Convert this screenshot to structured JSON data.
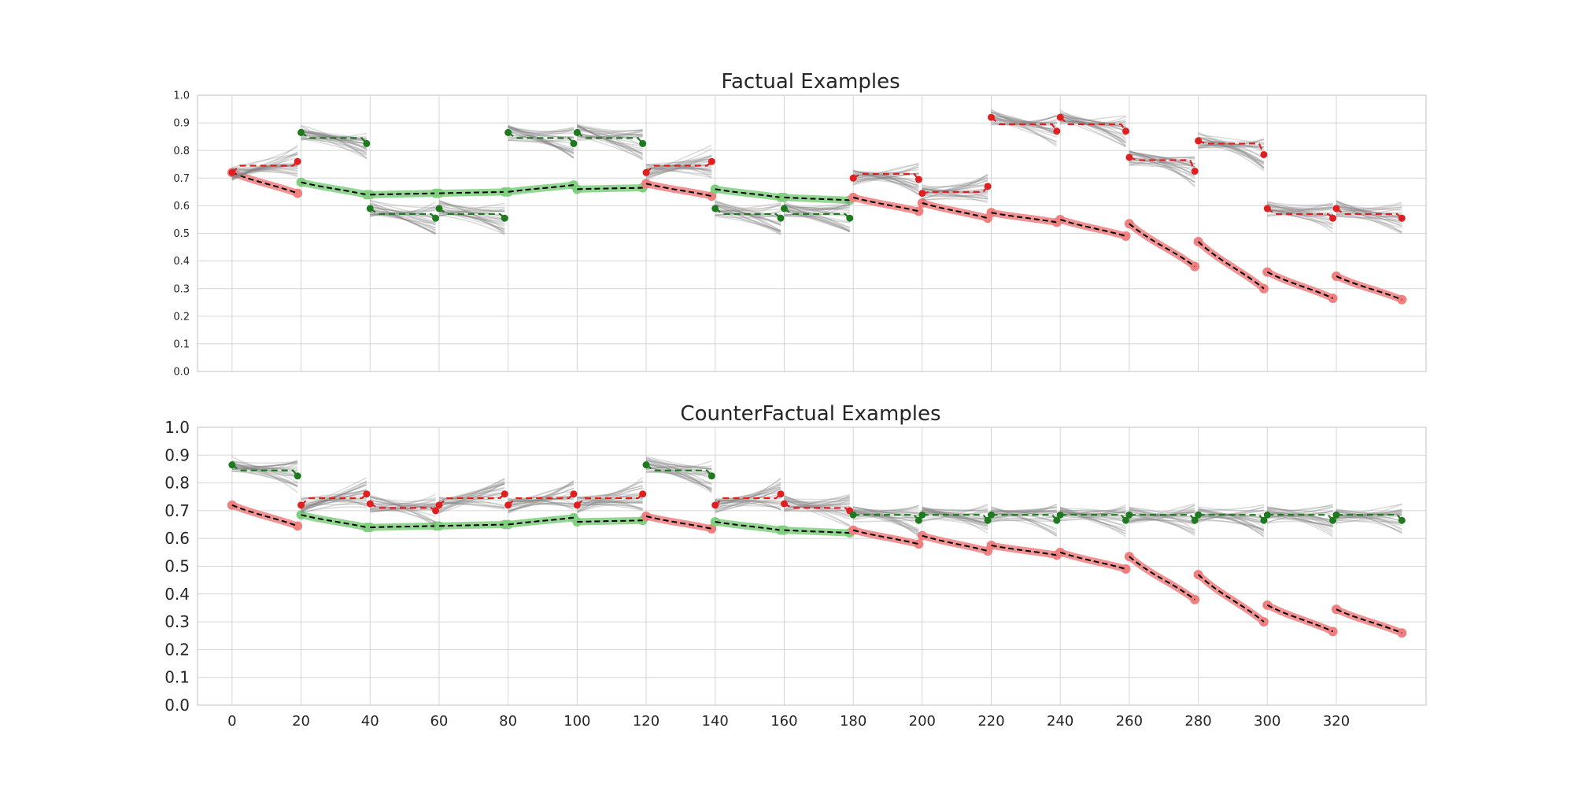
{
  "colors": {
    "background": "#ffffff",
    "frame": "#cccccc",
    "grid": "#d5d5d5",
    "green_dark": "#1f7a1f",
    "green_light": "#7fcf7f",
    "red": "#e02020",
    "red_light": "#f08080",
    "ensemble_gray": "#808080",
    "trend_black": "#000000"
  },
  "chart_data": [
    {
      "type": "line",
      "title": "Factual Examples",
      "xlim": [
        -10,
        346
      ],
      "ylim": [
        0.0,
        1.0
      ],
      "x_ticks": [],
      "y_ticks": [
        "0.0",
        "0.1",
        "0.2",
        "0.3",
        "0.4",
        "0.5",
        "0.6",
        "0.7",
        "0.8",
        "0.9",
        "1.0"
      ],
      "grid": true,
      "window_length": 20,
      "context": [
        {
          "color": "red",
          "values": [
            0.72,
            0.645
          ]
        },
        {
          "color": "green",
          "values": [
            0.685,
            0.64
          ]
        },
        {
          "color": "green",
          "values": [
            0.64,
            0.645
          ]
        },
        {
          "color": "green",
          "values": [
            0.645,
            0.65
          ]
        },
        {
          "color": "green",
          "values": [
            0.65,
            0.675
          ]
        },
        {
          "color": "green",
          "values": [
            0.66,
            0.665
          ]
        },
        {
          "color": "red",
          "values": [
            0.68,
            0.635
          ]
        },
        {
          "color": "green",
          "values": [
            0.66,
            0.63
          ]
        },
        {
          "color": "green",
          "values": [
            0.63,
            0.62
          ]
        },
        {
          "color": "red",
          "values": [
            0.63,
            0.58
          ]
        },
        {
          "color": "red",
          "values": [
            0.61,
            0.555
          ]
        },
        {
          "color": "red",
          "values": [
            0.575,
            0.54
          ]
        },
        {
          "color": "red",
          "values": [
            0.55,
            0.49
          ]
        },
        {
          "color": "red",
          "values": [
            0.535,
            0.38
          ]
        },
        {
          "color": "red",
          "values": [
            0.47,
            0.3
          ]
        },
        {
          "color": "red",
          "values": [
            0.36,
            0.265
          ]
        },
        {
          "color": "red",
          "values": [
            0.345,
            0.26
          ]
        }
      ],
      "forecasts": [
        {
          "color": "red",
          "start": 0.72,
          "level": 0.745,
          "end": 0.76
        },
        {
          "color": "green",
          "start": 0.865,
          "level": 0.845,
          "end": 0.825
        },
        {
          "color": "green",
          "start": 0.59,
          "level": 0.57,
          "end": 0.555
        },
        {
          "color": "green",
          "start": 0.59,
          "level": 0.57,
          "end": 0.555
        },
        {
          "color": "green",
          "start": 0.865,
          "level": 0.845,
          "end": 0.825
        },
        {
          "color": "green",
          "start": 0.865,
          "level": 0.845,
          "end": 0.825
        },
        {
          "color": "red",
          "start": 0.72,
          "level": 0.745,
          "end": 0.76
        },
        {
          "color": "green",
          "start": 0.59,
          "level": 0.57,
          "end": 0.555
        },
        {
          "color": "green",
          "start": 0.59,
          "level": 0.57,
          "end": 0.555
        },
        {
          "color": "red",
          "start": 0.7,
          "level": 0.715,
          "end": 0.695
        },
        {
          "color": "red",
          "start": 0.645,
          "level": 0.65,
          "end": 0.67
        },
        {
          "color": "red",
          "start": 0.92,
          "level": 0.895,
          "end": 0.87
        },
        {
          "color": "red",
          "start": 0.92,
          "level": 0.895,
          "end": 0.87
        },
        {
          "color": "red",
          "start": 0.775,
          "level": 0.765,
          "end": 0.725
        },
        {
          "color": "red",
          "start": 0.835,
          "level": 0.825,
          "end": 0.785
        },
        {
          "color": "red",
          "start": 0.59,
          "level": 0.57,
          "end": 0.555
        },
        {
          "color": "red",
          "start": 0.59,
          "level": 0.57,
          "end": 0.555
        }
      ]
    },
    {
      "type": "line",
      "title": "CounterFactual Examples",
      "xlim": [
        -10,
        346
      ],
      "ylim": [
        0.0,
        1.0
      ],
      "x_ticks": [
        "0",
        "20",
        "40",
        "60",
        "80",
        "100",
        "120",
        "140",
        "160",
        "180",
        "200",
        "220",
        "240",
        "260",
        "280",
        "300",
        "320"
      ],
      "y_ticks": [
        "0.0",
        "0.1",
        "0.2",
        "0.3",
        "0.4",
        "0.5",
        "0.6",
        "0.7",
        "0.8",
        "0.9",
        "1.0"
      ],
      "grid": true,
      "window_length": 20,
      "context": [
        {
          "color": "red",
          "values": [
            0.72,
            0.645
          ]
        },
        {
          "color": "green",
          "values": [
            0.685,
            0.64
          ]
        },
        {
          "color": "green",
          "values": [
            0.64,
            0.645
          ]
        },
        {
          "color": "green",
          "values": [
            0.645,
            0.65
          ]
        },
        {
          "color": "green",
          "values": [
            0.65,
            0.675
          ]
        },
        {
          "color": "green",
          "values": [
            0.66,
            0.665
          ]
        },
        {
          "color": "red",
          "values": [
            0.68,
            0.635
          ]
        },
        {
          "color": "green",
          "values": [
            0.66,
            0.63
          ]
        },
        {
          "color": "green",
          "values": [
            0.63,
            0.62
          ]
        },
        {
          "color": "red",
          "values": [
            0.63,
            0.58
          ]
        },
        {
          "color": "red",
          "values": [
            0.61,
            0.555
          ]
        },
        {
          "color": "red",
          "values": [
            0.575,
            0.54
          ]
        },
        {
          "color": "red",
          "values": [
            0.55,
            0.49
          ]
        },
        {
          "color": "red",
          "values": [
            0.535,
            0.38
          ]
        },
        {
          "color": "red",
          "values": [
            0.47,
            0.3
          ]
        },
        {
          "color": "red",
          "values": [
            0.36,
            0.265
          ]
        },
        {
          "color": "red",
          "values": [
            0.345,
            0.26
          ]
        }
      ],
      "forecasts": [
        {
          "color": "green",
          "start": 0.865,
          "level": 0.845,
          "end": 0.825
        },
        {
          "color": "red",
          "start": 0.72,
          "level": 0.745,
          "end": 0.76
        },
        {
          "color": "red",
          "start": 0.725,
          "level": 0.71,
          "end": 0.7
        },
        {
          "color": "red",
          "start": 0.72,
          "level": 0.745,
          "end": 0.76
        },
        {
          "color": "red",
          "start": 0.72,
          "level": 0.745,
          "end": 0.76
        },
        {
          "color": "red",
          "start": 0.72,
          "level": 0.745,
          "end": 0.76
        },
        {
          "color": "green",
          "start": 0.865,
          "level": 0.845,
          "end": 0.825
        },
        {
          "color": "red",
          "start": 0.72,
          "level": 0.745,
          "end": 0.76
        },
        {
          "color": "red",
          "start": 0.725,
          "level": 0.71,
          "end": 0.7
        },
        {
          "color": "green",
          "start": 0.685,
          "level": 0.685,
          "end": 0.665
        },
        {
          "color": "green",
          "start": 0.685,
          "level": 0.685,
          "end": 0.665
        },
        {
          "color": "green",
          "start": 0.685,
          "level": 0.685,
          "end": 0.665
        },
        {
          "color": "green",
          "start": 0.685,
          "level": 0.685,
          "end": 0.665
        },
        {
          "color": "green",
          "start": 0.685,
          "level": 0.685,
          "end": 0.665
        },
        {
          "color": "green",
          "start": 0.685,
          "level": 0.685,
          "end": 0.665
        },
        {
          "color": "green",
          "start": 0.685,
          "level": 0.685,
          "end": 0.665
        },
        {
          "color": "green",
          "start": 0.685,
          "level": 0.685,
          "end": 0.665
        }
      ]
    }
  ]
}
